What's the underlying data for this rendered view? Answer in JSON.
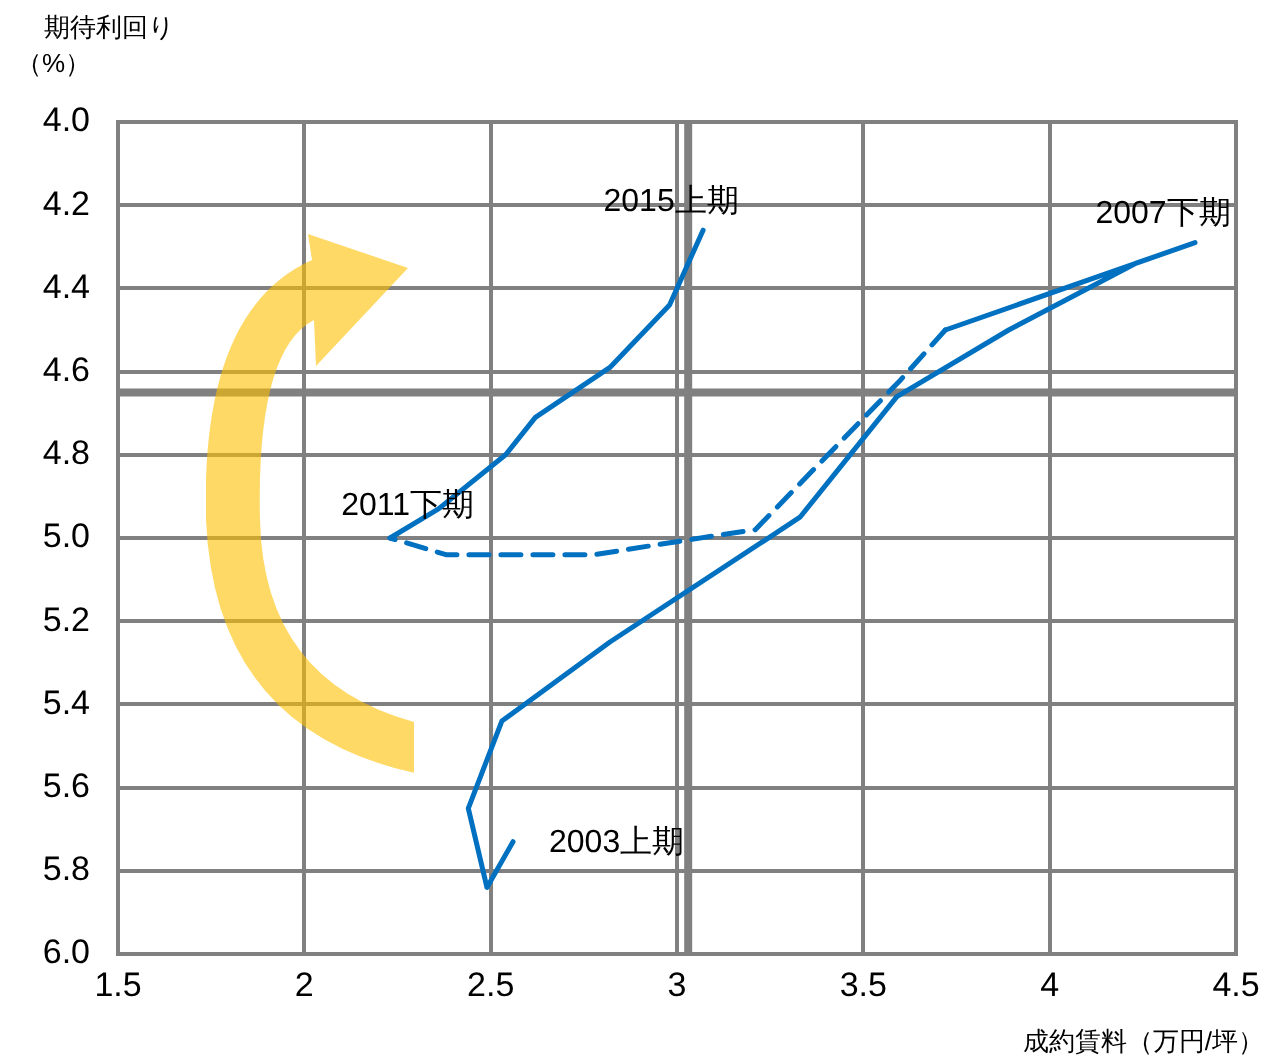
{
  "chart_data": {
    "type": "line",
    "xlabel": "成約賃料（万円/坪）",
    "ylabel": "期待利回り（%）",
    "xlim": [
      1.5,
      4.5
    ],
    "xticks": [
      1.5,
      2,
      2.5,
      3,
      3.5,
      4,
      4.5
    ],
    "ylim": [
      6.0,
      4.0
    ],
    "yticks": [
      {
        "value": 4,
        "label": "4.0"
      },
      {
        "value": 4.2,
        "label": "4.2"
      },
      {
        "value": 4.4,
        "label": "4.4"
      },
      {
        "value": 4.6,
        "label": "4.6"
      },
      {
        "value": 4.8,
        "label": "4.8"
      },
      {
        "value": 5,
        "label": "5.0"
      },
      {
        "value": 5.2,
        "label": "5.2"
      },
      {
        "value": 5.4,
        "label": "5.4"
      },
      {
        "value": 5.6,
        "label": "5.6"
      },
      {
        "value": 5.8,
        "label": "5.8"
      },
      {
        "value": 6,
        "label": "6.0"
      }
    ],
    "grid": true,
    "legend": false,
    "marker": "none",
    "series": [
      {
        "color": "#0070c0",
        "line_style": "solid",
        "x": [
          2.56,
          2.49,
          2.44,
          2.53,
          2.82,
          3.33,
          3.59,
          3.89,
          4.23,
          4.39,
          3.72,
          null,
          2.23,
          2.36,
          2.54,
          2.62,
          2.82,
          2.98,
          3.07
        ],
        "values": [
          5.73,
          5.84,
          5.65,
          5.44,
          5.25,
          4.95,
          4.66,
          4.5,
          4.34,
          4.29,
          4.5,
          null,
          5.0,
          4.93,
          4.8,
          4.71,
          4.59,
          4.44,
          4.26
        ]
      },
      {
        "color": "#0070c0",
        "line_style": "dashed",
        "x": [
          3.72,
          3.6,
          3.21,
          2.99,
          2.78,
          2.6,
          2.38,
          2.23
        ],
        "values": [
          4.5,
          4.62,
          4.98,
          5.01,
          5.04,
          5.04,
          5.04,
          5.0
        ]
      }
    ],
    "ref_lines": [
      {
        "axis": "x",
        "value": 3.03,
        "color": "#808080"
      },
      {
        "axis": "y",
        "value": 4.65,
        "color": "#808080"
      }
    ],
    "annotations": [
      {
        "text": "2015上期",
        "x": 3.07,
        "y": 4.26
      },
      {
        "text": "2007下期",
        "x": 4.39,
        "y": 4.29
      },
      {
        "text": "2011下期",
        "x": 2.23,
        "y": 5.0
      },
      {
        "text": "2003上期",
        "x": 2.56,
        "y": 5.73
      }
    ]
  }
}
